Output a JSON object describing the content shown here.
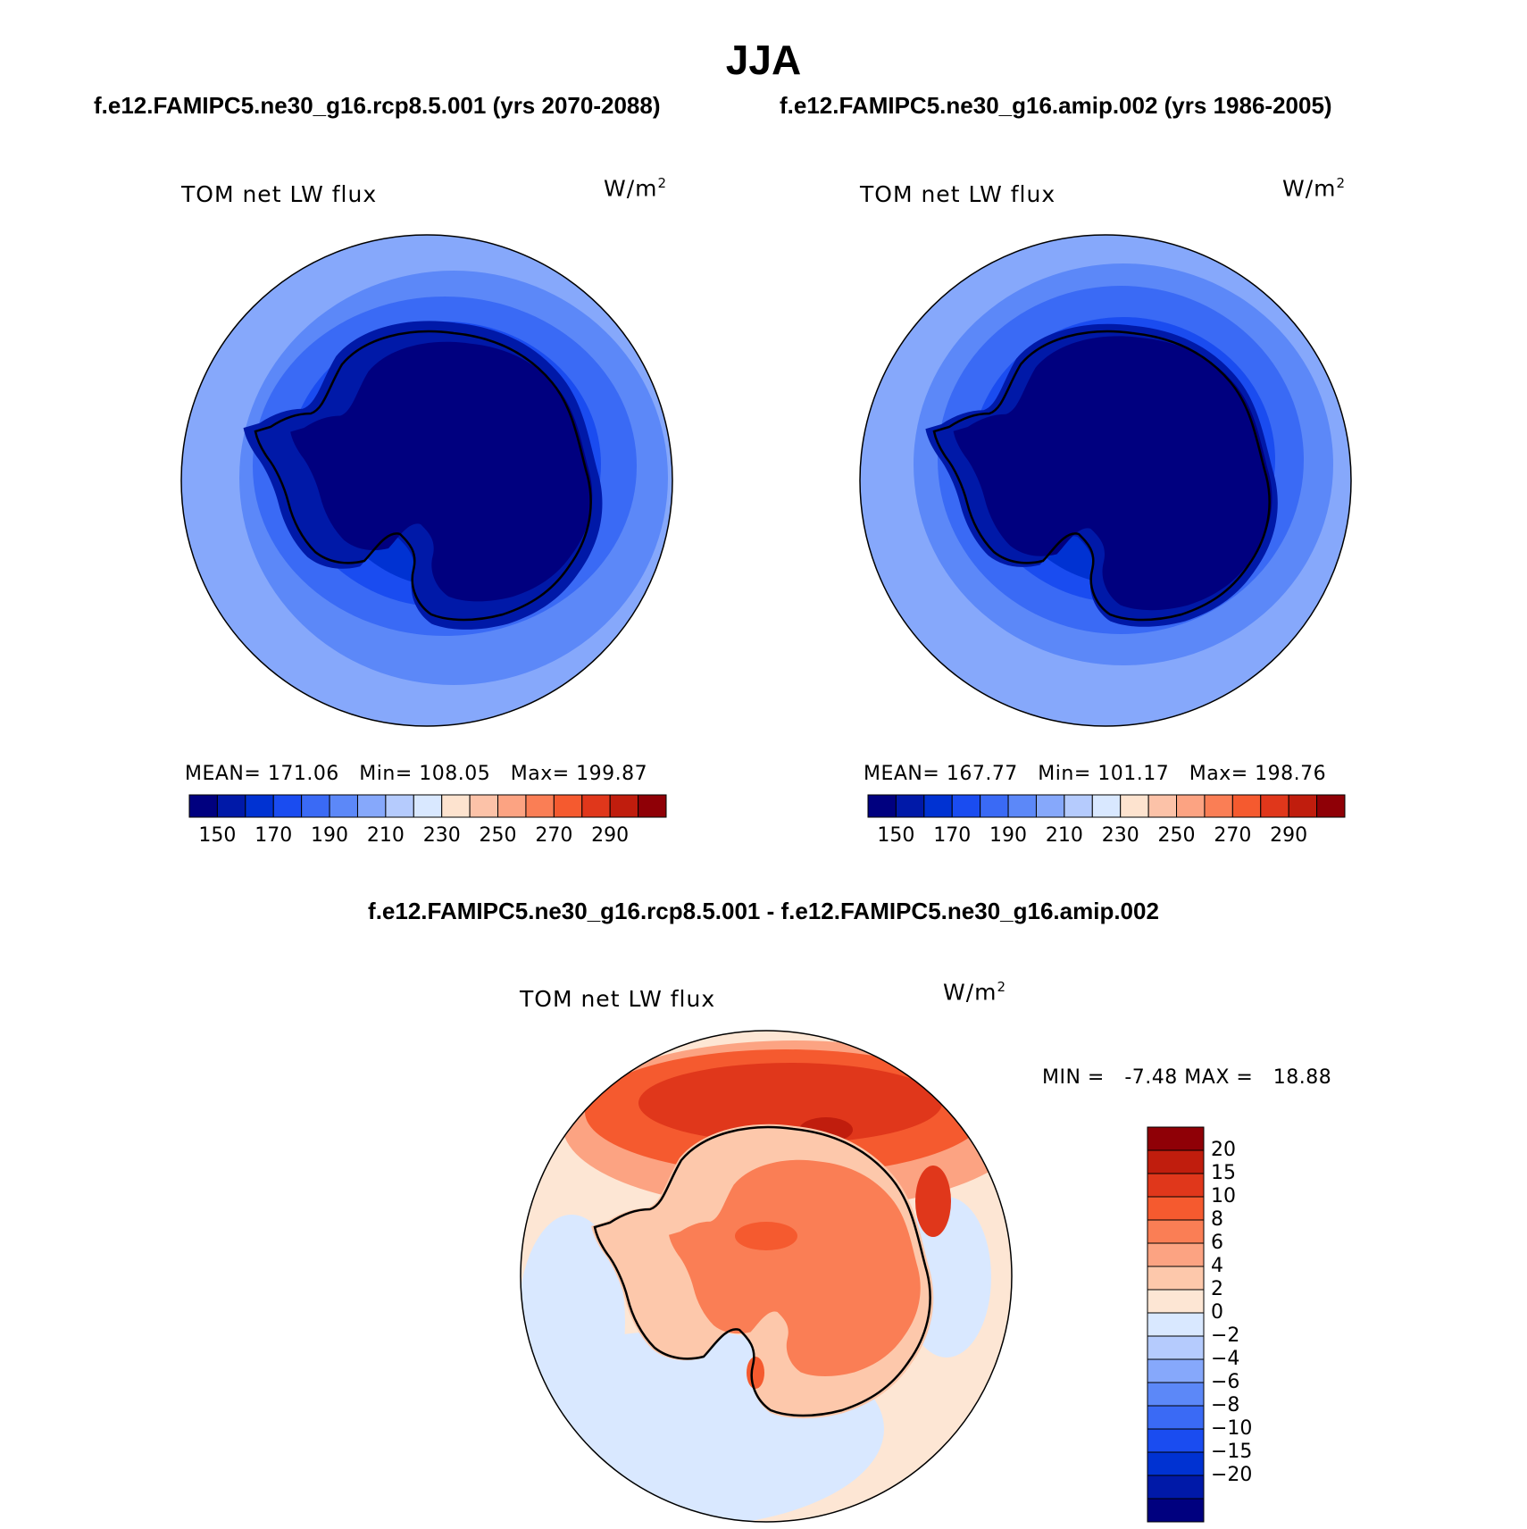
{
  "title": "JJA",
  "panels": [
    {
      "case_title": "f.e12.FAMIPC5.ne30_g16.rcp8.5.001 (yrs 2070-2088)",
      "variable": "TOM net LW flux",
      "units_base": "W/m",
      "units_exp": "2",
      "stats": {
        "mean_label": "MEAN=",
        "mean": "171.06",
        "min_label": "Min=",
        "min": "108.05",
        "max_label": "Max=",
        "max": "199.87"
      }
    },
    {
      "case_title": "f.e12.FAMIPC5.ne30_g16.amip.002 (yrs 1986-2005)",
      "variable": "TOM net LW flux",
      "units_base": "W/m",
      "units_exp": "2",
      "stats": {
        "mean_label": "MEAN=",
        "mean": "167.77",
        "min_label": "Min=",
        "min": "101.17",
        "max_label": "Max=",
        "max": "198.76"
      }
    }
  ],
  "colorbar_abs": {
    "colors": [
      "#00007f",
      "#0019a8",
      "#0032d2",
      "#1a4cf0",
      "#3a6af5",
      "#5c88f8",
      "#86a8fb",
      "#b5cbfd",
      "#d9e8ff",
      "#fde3cf",
      "#fcc2a8",
      "#fca382",
      "#fa7e55",
      "#f55a2f",
      "#e0371b",
      "#c01d0d",
      "#8f0006"
    ],
    "labels": [
      "150",
      "170",
      "190",
      "210",
      "230",
      "250",
      "270",
      "290"
    ]
  },
  "diff": {
    "title": "f.e12.FAMIPC5.ne30_g16.rcp8.5.001 - f.e12.FAMIPC5.ne30_g16.amip.002",
    "variable": "TOM net LW flux",
    "units_base": "W/m",
    "units_exp": "2",
    "minmax": {
      "min_label": "MIN =",
      "min": "-7.48",
      "max_label": "MAX =",
      "max": "18.88"
    },
    "colorbar": {
      "colors": [
        "#8f0006",
        "#c01d0d",
        "#e0371b",
        "#f55a2f",
        "#fa7e55",
        "#fca382",
        "#fdc8ab",
        "#fde6d4",
        "#d9e8ff",
        "#b5cbfd",
        "#86a8fb",
        "#5c88f8",
        "#3a6af5",
        "#1a4cf0",
        "#0032d2",
        "#0019a8",
        "#00007f"
      ],
      "labels": [
        "20",
        "15",
        "10",
        "8",
        "6",
        "4",
        "2",
        "0",
        "−2",
        "−4",
        "−6",
        "−8",
        "−10",
        "−15",
        "−20"
      ]
    }
  }
}
